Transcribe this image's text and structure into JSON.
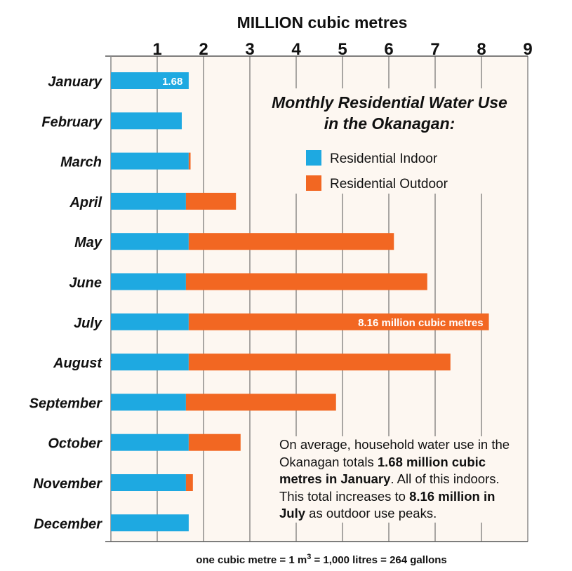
{
  "chart_data": {
    "type": "bar",
    "orientation": "horizontal",
    "stacked": true,
    "title": "Monthly Residential Water Use in the Okanagan:",
    "title_lines": [
      "Monthly Residential Water Use",
      "in the Okanagan:"
    ],
    "xlabel": "MILLION cubic metres",
    "xlim": [
      0,
      9
    ],
    "xticks": [
      "1",
      "2",
      "3",
      "4",
      "5",
      "6",
      "7",
      "8",
      "9"
    ],
    "grid": true,
    "legend_position": "top-right",
    "categories": [
      "January",
      "February",
      "March",
      "April",
      "May",
      "June",
      "July",
      "August",
      "September",
      "October",
      "November",
      "December"
    ],
    "series": [
      {
        "name": "Residential Indoor",
        "color": "#1ea9e1",
        "values": [
          1.68,
          1.53,
          1.68,
          1.62,
          1.68,
          1.62,
          1.68,
          1.68,
          1.62,
          1.68,
          1.62,
          1.68
        ]
      },
      {
        "name": "Residential Outdoor",
        "color": "#f26722",
        "values": [
          0,
          0,
          0.04,
          1.08,
          4.43,
          5.21,
          6.48,
          5.65,
          3.24,
          1.12,
          0.15,
          0
        ]
      }
    ],
    "annotations": {
      "january": "1.68",
      "july": "8.16 million cubic metres"
    },
    "footnote": {
      "pre": "one cubic metre = 1 m",
      "sup": "3",
      "post": " = 1,000 litres = 264 gallons"
    }
  },
  "note": {
    "t1": "On average, household water use in the Okanagan totals ",
    "b1": "1.68 million cubic metres in January",
    "t2": ". All of this indoors. This total increases to ",
    "b2": "8.16 million in July",
    "t3": " as outdoor use peaks."
  }
}
